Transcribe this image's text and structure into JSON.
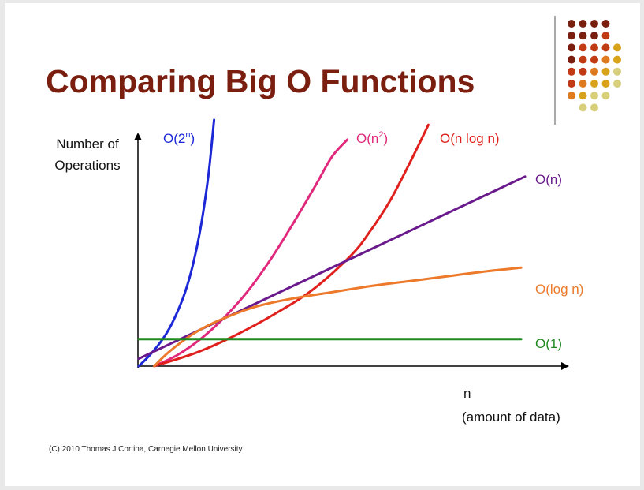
{
  "slide": {
    "title": "Comparing Big O Functions",
    "footer": "(C) 2010 Thomas J Cortina, Carnegie Mellon University"
  },
  "decoration": {
    "dot_rows": [
      [
        "#7a1e10",
        "#7a1e10",
        "#7a1e10",
        "#7a1e10"
      ],
      [
        "#7a1e10",
        "#7a1e10",
        "#7a1e10",
        "#c03a13"
      ],
      [
        "#7a1e10",
        "#c03a13",
        "#c03a13",
        "#c03a13",
        "#d9a21b"
      ],
      [
        "#7a1e10",
        "#c03a13",
        "#c03a13",
        "#e07a1f",
        "#d9a21b"
      ],
      [
        "#c03a13",
        "#c03a13",
        "#e07a1f",
        "#d9a21b",
        "#d8cf7a"
      ],
      [
        "#c03a13",
        "#e07a1f",
        "#d9a21b",
        "#d9a21b",
        "#d8cf7a"
      ],
      [
        "#e07a1f",
        "#d9a21b",
        "#d8cf7a",
        "#d8cf7a"
      ],
      [
        "#d8cf7a",
        "#d8cf7a"
      ]
    ]
  },
  "chart_data": {
    "type": "line",
    "title": "",
    "ylabel_lines": [
      "Number of",
      "Operations"
    ],
    "xlabel_lines": [
      "n",
      "(amount of data)"
    ],
    "xlim": [
      0,
      100
    ],
    "ylim": [
      0,
      100
    ],
    "grid": false,
    "axis_color": "#000000",
    "series": [
      {
        "name": "O(2",
        "sup": "n",
        "suffix": ")",
        "color": "#1c28d6",
        "x": [
          0,
          2,
          4,
          6,
          8,
          10,
          12,
          14,
          16,
          18,
          19.5
        ],
        "y": [
          0,
          3,
          6.5,
          10.5,
          15.5,
          22,
          30,
          41,
          56,
          77,
          100
        ]
      },
      {
        "name": "O(n",
        "sup": "2",
        "suffix": ")",
        "color": "#e0287c",
        "x": [
          4,
          10,
          16,
          22,
          28,
          34,
          40,
          46,
          50,
          54
        ],
        "y": [
          0,
          4.5,
          11,
          19.5,
          30,
          43,
          58,
          74,
          85,
          92
        ]
      },
      {
        "name": "O(n log n)",
        "sup": "",
        "suffix": "",
        "color": "#e0201c",
        "x": [
          4,
          15,
          25,
          35,
          45,
          55,
          60,
          65,
          70,
          75
        ],
        "y": [
          0,
          5.5,
          12.5,
          21,
          31,
          45,
          55,
          67,
          82,
          98
        ]
      },
      {
        "name": "O(n)",
        "sup": "",
        "suffix": "",
        "color": "#6a1a8c",
        "x": [
          0,
          100
        ],
        "y": [
          3,
          77
        ]
      },
      {
        "name": "O(log n)",
        "sup": "",
        "suffix": "",
        "color": "#ec7a2a",
        "x": [
          4,
          8,
          14,
          20,
          30,
          40,
          50,
          60,
          70,
          80,
          90,
          99
        ],
        "y": [
          0,
          6,
          13,
          18,
          24,
          27.5,
          30,
          32.5,
          34.5,
          36.5,
          38.5,
          40
        ]
      },
      {
        "name": "O(1)",
        "sup": "",
        "suffix": "",
        "color": "#1f8a1f",
        "x": [
          0,
          99
        ],
        "y": [
          11,
          11
        ]
      }
    ]
  }
}
